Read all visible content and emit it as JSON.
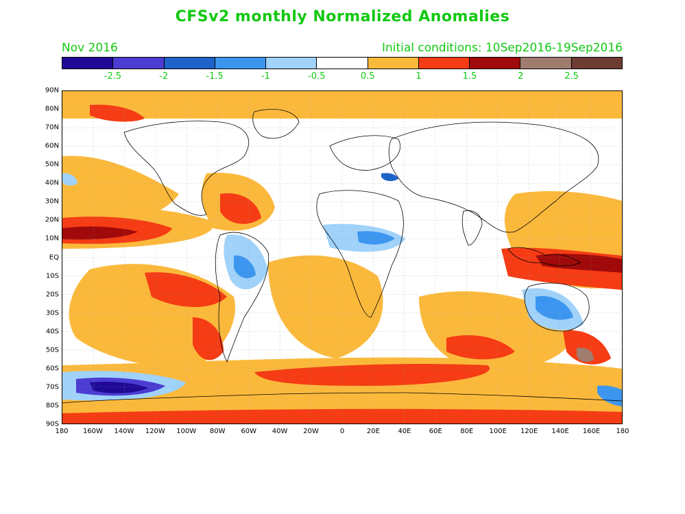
{
  "header": {
    "title": "CFSv2 monthly Normalized Anomalies",
    "period": "Nov 2016",
    "initial_conditions": "Initial conditions: 10Sep2016-19Sep2016"
  },
  "colorbar": {
    "colors": [
      "#1f0a96",
      "#4b3cd2",
      "#1e64c8",
      "#3c96f0",
      "#a0d2fa",
      "#ffffff",
      "#fbb93c",
      "#f53c14",
      "#a00a0a",
      "#a07c6e",
      "#6e3c32"
    ],
    "labels": [
      "-2.5",
      "-2",
      "-1.5",
      "-1",
      "-0.5",
      "0.5",
      "1",
      "1.5",
      "2",
      "2.5"
    ]
  },
  "axes": {
    "y_labels": [
      "90N",
      "80N",
      "70N",
      "60N",
      "50N",
      "40N",
      "30N",
      "20N",
      "10N",
      "EQ",
      "10S",
      "20S",
      "30S",
      "40S",
      "50S",
      "60S",
      "70S",
      "80S",
      "90S"
    ],
    "x_labels": [
      "180",
      "160W",
      "140W",
      "120W",
      "100W",
      "80W",
      "60W",
      "40W",
      "20W",
      "0",
      "20E",
      "40E",
      "60E",
      "80E",
      "100E",
      "120E",
      "140E",
      "160E",
      "180"
    ]
  }
}
